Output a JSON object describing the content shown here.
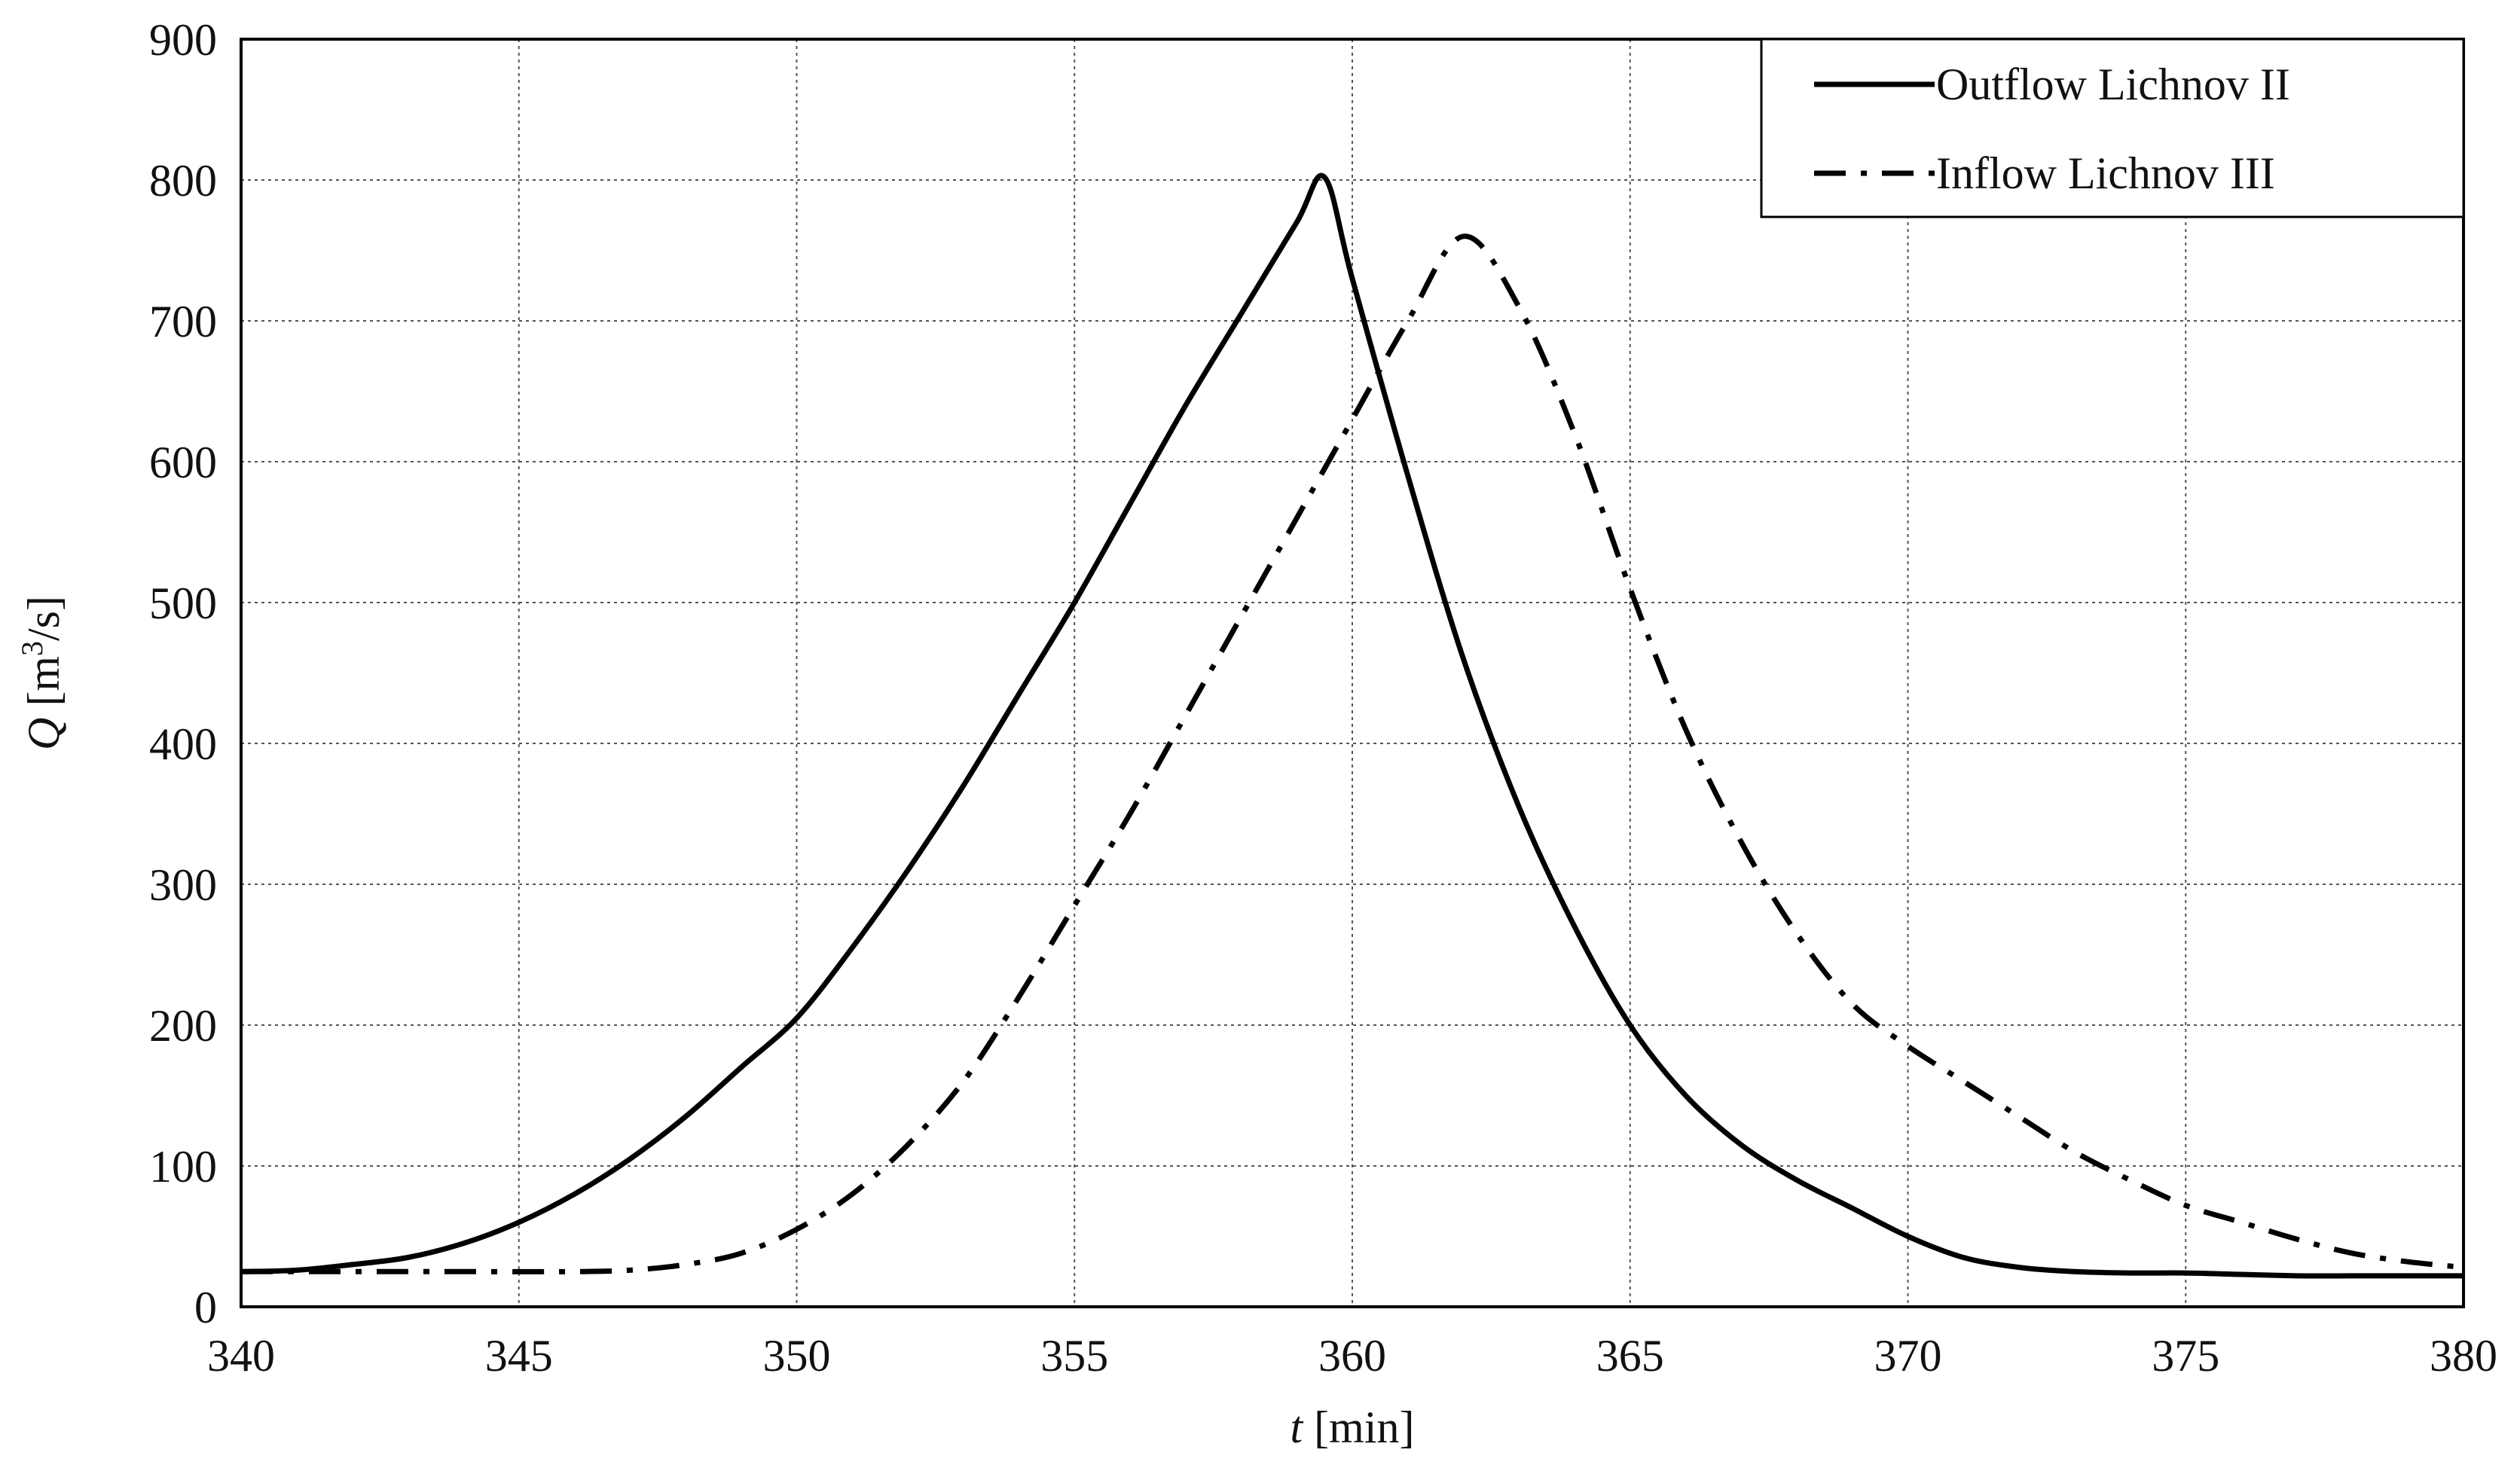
{
  "chart_data": {
    "type": "line",
    "title": "",
    "xlabel_italic": "t",
    "xlabel_unit": " [min]",
    "ylabel_italic": "Q",
    "ylabel_unit_pre": " [m",
    "ylabel_unit_sup": "3",
    "ylabel_unit_post": "/s]",
    "xlim": [
      340,
      380
    ],
    "ylim": [
      0,
      900
    ],
    "x_ticks": [
      340,
      345,
      350,
      355,
      360,
      365,
      370,
      375,
      380
    ],
    "y_ticks": [
      0,
      100,
      200,
      300,
      400,
      500,
      600,
      700,
      800,
      900
    ],
    "grid": true,
    "legend_position": "top-right",
    "series": [
      {
        "name": "Outflow Lichnov II",
        "style": "solid",
        "color": "#000000",
        "x": [
          340,
          341,
          342,
          343,
          344,
          345,
          346,
          347,
          348,
          349,
          350,
          351,
          352,
          353,
          354,
          355,
          356,
          357,
          358,
          359,
          359.5,
          360,
          361,
          362,
          363,
          364,
          365,
          366,
          367,
          368,
          369,
          370,
          371,
          372,
          373,
          374,
          375,
          376,
          377,
          378,
          379,
          380
        ],
        "y": [
          25,
          26,
          30,
          35,
          45,
          60,
          80,
          105,
          135,
          170,
          205,
          255,
          310,
          370,
          435,
          500,
          570,
          640,
          705,
          770,
          802,
          730,
          590,
          460,
          355,
          270,
          200,
          150,
          115,
          90,
          70,
          50,
          35,
          28,
          25,
          24,
          24,
          23,
          22,
          22,
          22,
          22
        ]
      },
      {
        "name": "Inflow Lichnov III",
        "style": "dash-dot",
        "color": "#000000",
        "x": [
          340,
          342,
          344,
          346,
          347,
          348,
          349,
          350,
          351,
          352,
          353,
          354,
          355,
          356,
          357,
          358,
          359,
          360,
          361,
          362,
          363,
          364,
          365,
          366,
          367,
          368,
          369,
          370,
          371,
          372,
          373,
          374,
          375,
          376,
          377,
          378,
          379,
          380
        ],
        "y": [
          25,
          25,
          25,
          25,
          26,
          30,
          38,
          55,
          80,
          115,
          160,
          220,
          285,
          350,
          420,
          490,
          560,
          630,
          700,
          760,
          710,
          620,
          510,
          410,
          330,
          265,
          215,
          185,
          160,
          135,
          110,
          90,
          72,
          60,
          48,
          38,
          32,
          28
        ]
      }
    ]
  }
}
